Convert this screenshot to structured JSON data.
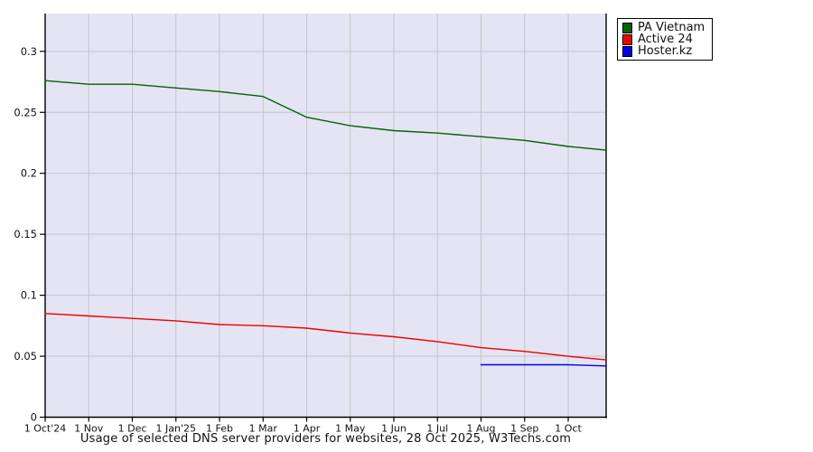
{
  "title": "Usage of selected DNS server providers for websites, 28 Oct 2025, W3Techs.com",
  "legend": {
    "position": "top-right",
    "items": [
      "PA Vietnam",
      "Active 24",
      "Hoster.kz"
    ]
  },
  "chart_data": {
    "type": "line",
    "title": "Usage of selected DNS server providers for websites, 28 Oct 2025, W3Techs.com",
    "xlabel": "",
    "ylabel": "",
    "x_unit": "months since 1 Oct 2024",
    "xlim": [
      0,
      12.87
    ],
    "ylim": [
      0,
      0.331
    ],
    "grid": true,
    "plot_bg_color": "#e4e4f4",
    "grid_color": "#c6c6c6",
    "axis_color": "#000000",
    "x_tick_positions": [
      0,
      1,
      2,
      3,
      4,
      5,
      6,
      7,
      8,
      9,
      10,
      11,
      12
    ],
    "x_tick_labels": [
      "1 Oct'24",
      "1 Nov",
      "1 Dec",
      "1 Jan'25",
      "1 Feb",
      "1 Mar",
      "1 Apr",
      "1 May",
      "1 Jun",
      "1 Jul",
      "1 Aug",
      "1 Sep",
      "1 Oct"
    ],
    "y_ticks": [
      0,
      0.05,
      0.1,
      0.15,
      0.2,
      0.25,
      0.3
    ],
    "y_tick_labels": [
      "0",
      "0.05",
      "0.1",
      "0.15",
      "0.2",
      "0.25",
      "0.3"
    ],
    "series": [
      {
        "name": "PA Vietnam",
        "color": "#006400",
        "x": [
          0,
          1,
          2,
          3,
          4,
          5,
          6,
          7,
          8,
          9,
          10,
          11,
          12,
          12.87
        ],
        "values": [
          0.276,
          0.273,
          0.273,
          0.27,
          0.267,
          0.263,
          0.246,
          0.239,
          0.235,
          0.233,
          0.23,
          0.227,
          0.222,
          0.219
        ]
      },
      {
        "name": "Active 24",
        "color": "#ee0000",
        "x": [
          0,
          1,
          2,
          3,
          4,
          5,
          6,
          7,
          8,
          9,
          10,
          11,
          12,
          12.87
        ],
        "values": [
          0.085,
          0.083,
          0.081,
          0.079,
          0.076,
          0.075,
          0.073,
          0.069,
          0.066,
          0.062,
          0.057,
          0.054,
          0.05,
          0.047
        ]
      },
      {
        "name": "Hoster.kz",
        "color": "#0000ee",
        "x": [
          10,
          11,
          12,
          12.87
        ],
        "values": [
          0.043,
          0.043,
          0.043,
          0.042
        ]
      }
    ]
  }
}
